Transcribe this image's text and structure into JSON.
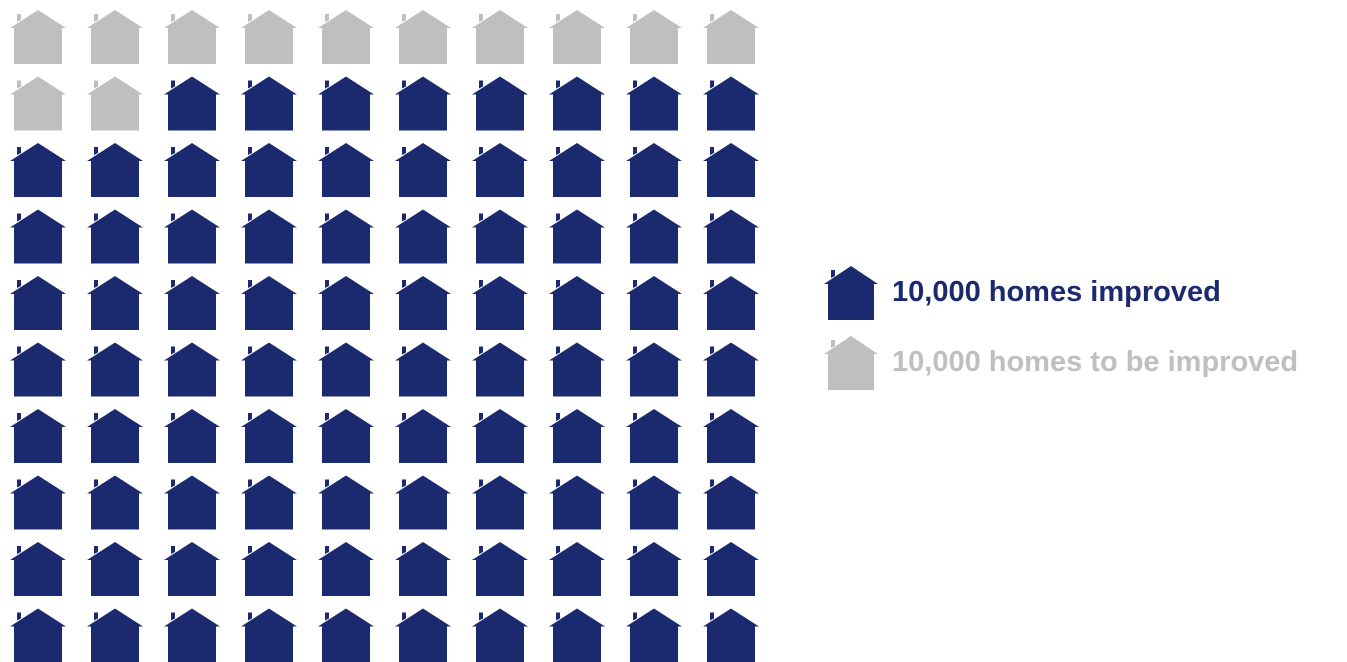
{
  "chart_data": {
    "type": "waffle",
    "grid": {
      "rows": 10,
      "columns": 10
    },
    "unit_icon": "house-icon",
    "series": [
      {
        "name": "10,000 homes to be improved",
        "count": 12,
        "color": "#BFBFBF"
      },
      {
        "name": "10,000 homes improved",
        "count": 88,
        "color": "#1B2A6E"
      }
    ]
  },
  "legend": {
    "items": [
      {
        "label": "10,000 homes improved",
        "color": "#1B2A6E",
        "icon": "house-icon"
      },
      {
        "label": "10,000 homes to be improved",
        "color": "#BFBFBF",
        "icon": "house-icon"
      }
    ]
  }
}
